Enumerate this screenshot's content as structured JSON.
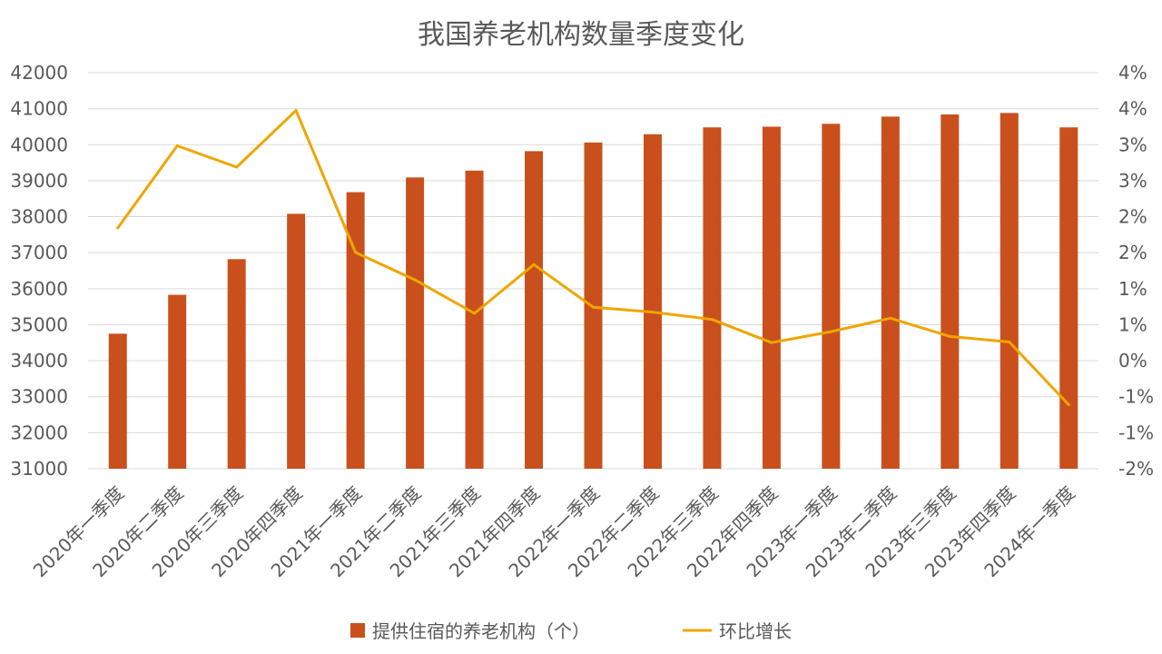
{
  "chart_data": {
    "type": "bar",
    "title": "我国养老机构数量季度变化",
    "categories": [
      "2020年一季度",
      "2020年二季度",
      "2020年三季度",
      "2020年四季度",
      "2021年一季度",
      "2021年二季度",
      "2021年三季度",
      "2021年四季度",
      "2022年一季度",
      "2022年二季度",
      "2022年三季度",
      "2022年四季度",
      "2023年一季度",
      "2023年二季度",
      "2023年三季度",
      "2023年四季度",
      "2024年一季度"
    ],
    "series": [
      {
        "name": "提供住宿的养老机构（个）",
        "type": "bar",
        "axis": "left",
        "color": "#C9501C",
        "values": [
          34750,
          35830,
          36820,
          38080,
          38680,
          39090,
          39280,
          39820,
          40060,
          40290,
          40480,
          40500,
          40580,
          40780,
          40840,
          40880,
          40480
        ]
      },
      {
        "name": "环比增长",
        "type": "line",
        "axis": "right",
        "color": "#F0A500",
        "values": [
          1.95,
          3.3,
          2.95,
          3.88,
          1.55,
          1.1,
          0.55,
          1.35,
          0.65,
          0.57,
          0.45,
          0.07,
          0.25,
          0.47,
          0.17,
          0.08,
          -0.95
        ]
      }
    ],
    "left_axis": {
      "min": 31000,
      "max": 42000,
      "step": 1000,
      "tick_labels": [
        "31000",
        "32000",
        "33000",
        "34000",
        "35000",
        "36000",
        "37000",
        "38000",
        "39000",
        "40000",
        "41000",
        "42000"
      ]
    },
    "right_axis": {
      "min": -2,
      "max": 4.5,
      "tick_labels": [
        "-2%",
        "-1%",
        "-1%",
        "0%",
        "1%",
        "1%",
        "2%",
        "2%",
        "3%",
        "3%",
        "4%",
        "4%"
      ]
    },
    "grid": true,
    "legend_position": "bottom"
  }
}
